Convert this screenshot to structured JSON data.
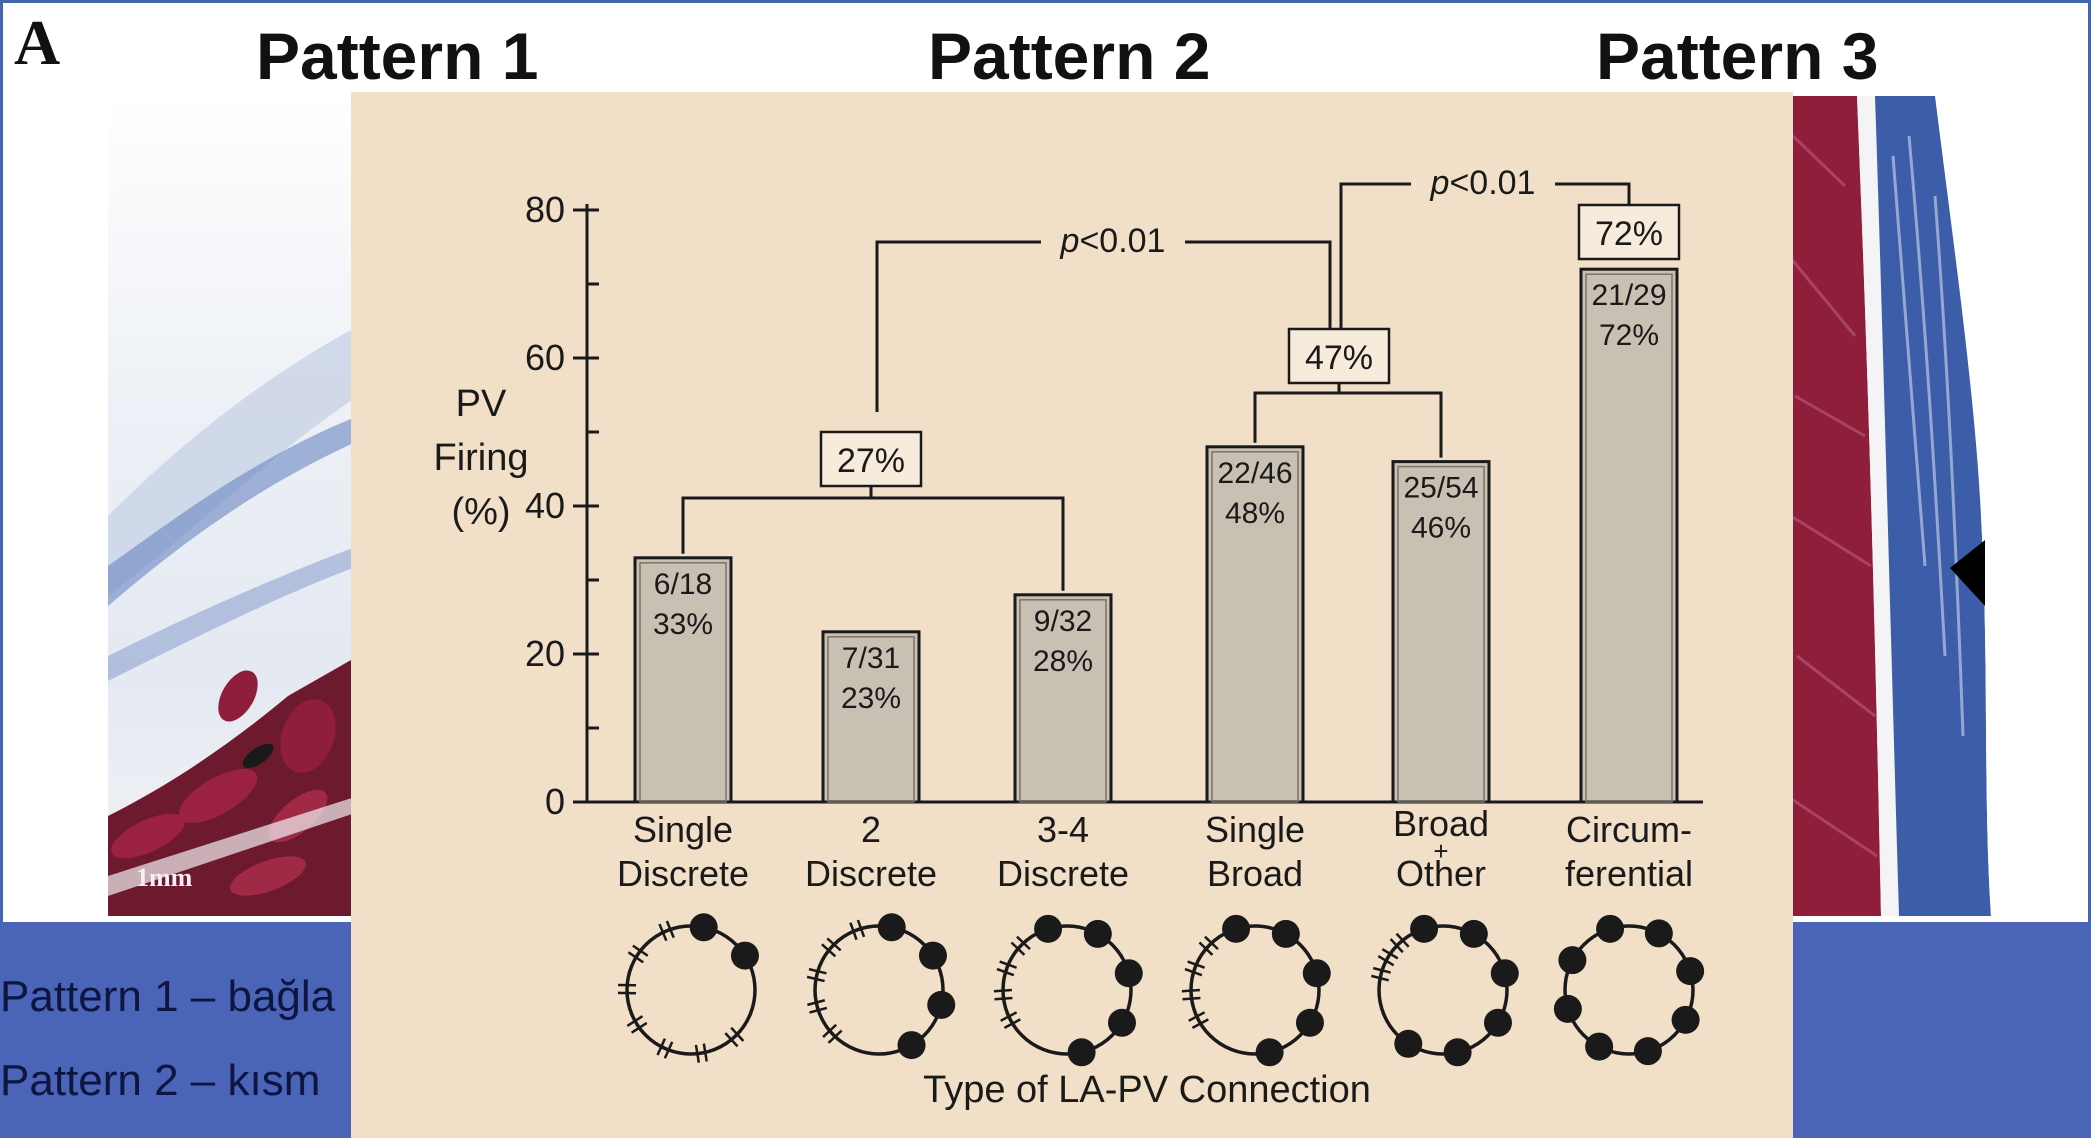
{
  "slide": {
    "panel_letter": "A",
    "patterns": [
      "Pattern 1",
      "Pattern 2",
      "Pattern 3"
    ],
    "captions": [
      "Pattern 1 – bağla",
      "Pattern 2 – kısm"
    ],
    "scale_label": "1mm",
    "colors": {
      "frame": "#4466aa",
      "band": "#4a64b8",
      "chart_bg": "#f1dfc8",
      "bar_fill": "#c8c0b2",
      "muscle": "#8e1e3a",
      "connective": "#3c5ea8"
    }
  },
  "chart_data": {
    "type": "bar",
    "ylabel_lines": [
      "PV",
      "Firing",
      "(%)"
    ],
    "xlabel": "Type of LA-PV Connection",
    "ylim": [
      0,
      80
    ],
    "yticks": [
      0,
      20,
      40,
      60,
      80
    ],
    "categories": [
      [
        "Single",
        "Discrete"
      ],
      [
        "2",
        "Discrete"
      ],
      [
        "3-4",
        "Discrete"
      ],
      [
        "Single",
        "Broad"
      ],
      [
        "Broad",
        "+",
        "Other"
      ],
      [
        "Circum-",
        "ferential"
      ]
    ],
    "values": [
      33,
      23,
      28,
      48,
      46,
      72
    ],
    "bar_labels": [
      [
        "6/18",
        "33%"
      ],
      [
        "7/31",
        "23%"
      ],
      [
        "9/32",
        "28%"
      ],
      [
        "22/46",
        "48%"
      ],
      [
        "25/54",
        "46%"
      ],
      [
        "21/29",
        "72%"
      ]
    ],
    "group_labels": [
      {
        "text": "27%",
        "bars": [
          0,
          2
        ]
      },
      {
        "text": "47%",
        "bars": [
          3,
          4
        ]
      },
      {
        "text": "72%",
        "bars": [
          5,
          5
        ]
      }
    ],
    "significance": [
      {
        "p_italic": "p",
        "p_rest": "<0.01",
        "between": [
          "27%",
          "47%"
        ]
      },
      {
        "p_italic": "p",
        "p_rest": "<0.01",
        "between": [
          "47%",
          "72%"
        ]
      }
    ],
    "connection_icons": [
      {
        "dots": 2,
        "ticks": 7
      },
      {
        "dots": 4,
        "ticks": 5
      },
      {
        "dots": 5,
        "ticks": 4
      },
      {
        "dots": 5,
        "ticks": 4
      },
      {
        "dots": 6,
        "ticks": 3
      },
      {
        "dots": 8,
        "ticks": 0
      }
    ]
  }
}
